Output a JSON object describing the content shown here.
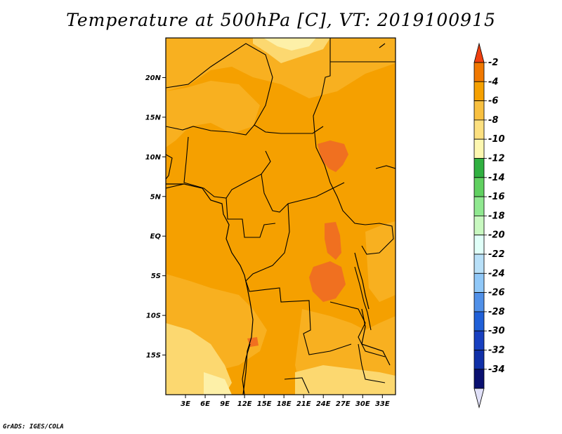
{
  "title": "Temperature at 500hPa [C], VT: 2019100915",
  "credit": "GrADS: IGES/COLA",
  "chart_data": {
    "type": "heatmap",
    "title": "Temperature at 500hPa [C], VT: 2019100915",
    "variable": "Temperature at 500hPa",
    "units": "C",
    "valid_time": "2019100915",
    "xlabel": "",
    "ylabel": "",
    "x_range": [
      0,
      35
    ],
    "y_range": [
      -20,
      25
    ],
    "x_ticks": [
      3,
      6,
      9,
      12,
      15,
      18,
      21,
      24,
      27,
      30,
      33
    ],
    "x_tick_labels": [
      "3E",
      "6E",
      "9E",
      "12E",
      "15E",
      "18E",
      "21E",
      "24E",
      "27E",
      "30E",
      "33E"
    ],
    "y_ticks": [
      20,
      15,
      10,
      5,
      0,
      -5,
      -10,
      -15
    ],
    "y_tick_labels": [
      "20N",
      "15N",
      "10N",
      "5N",
      "EQ",
      "5S",
      "10S",
      "15S"
    ],
    "colorbar": {
      "levels": [
        "-2",
        "-4",
        "-6",
        "-8",
        "-10",
        "-12",
        "-14",
        "-16",
        "-18",
        "-20",
        "-22",
        "-24",
        "-26",
        "-28",
        "-30",
        "-32",
        "-34"
      ],
      "colors": [
        "#f04010",
        "#f07800",
        "#f5a000",
        "#f8c040",
        "#fce080",
        "#fdf7b0",
        "#30b040",
        "#60d060",
        "#90e890",
        "#c8f8c0",
        "#e0fff8",
        "#b8e0f8",
        "#90c8f8",
        "#5090e8",
        "#2060d8",
        "#1840c0",
        "#1030a8",
        "#0a1070",
        "#e0e0f8"
      ]
    },
    "dominant_range": "-8 to -4",
    "regions": [
      {
        "description": "broad background",
        "range": "-6 to -4"
      },
      {
        "description": "east of ~24E, 10N-5N region",
        "range": "-4 to -2"
      },
      {
        "description": "Congo basin around 22E-26E, 0-8S",
        "range": "-4 to -2"
      },
      {
        "description": "northern Sahara edge, southern Angola",
        "range": "-10 to -8"
      }
    ]
  }
}
